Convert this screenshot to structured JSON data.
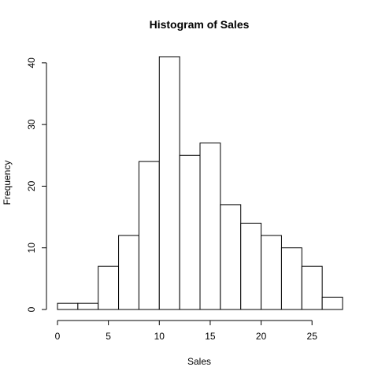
{
  "chart_data": {
    "type": "bar",
    "title": "Histogram of Sales",
    "xlabel": "Sales",
    "ylabel": "Frequency",
    "bin_edges": [
      0,
      2,
      4,
      6,
      8,
      10,
      12,
      14,
      16,
      18,
      20,
      22,
      24,
      26,
      28
    ],
    "values": [
      1,
      1,
      7,
      12,
      24,
      41,
      25,
      27,
      17,
      14,
      12,
      10,
      7,
      2
    ],
    "xlim": [
      0,
      28
    ],
    "ylim": [
      0,
      41
    ],
    "x_ticks": [
      0,
      5,
      10,
      15,
      20,
      25
    ],
    "y_ticks": [
      0,
      10,
      20,
      30,
      40
    ],
    "grid": false,
    "legend": "none",
    "colors": {
      "bar_fill": "#ffffff",
      "bar_stroke": "#000000"
    }
  }
}
